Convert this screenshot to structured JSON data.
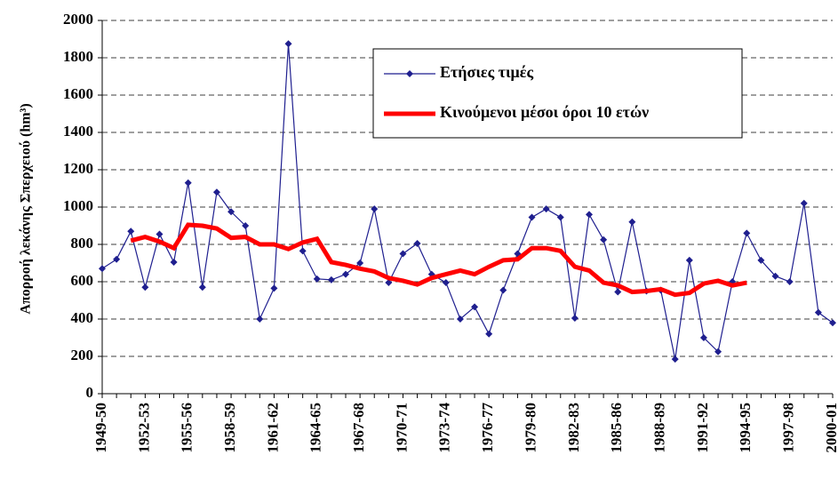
{
  "chart_data": {
    "type": "line",
    "y_label": "Απορροή λεκάνης Σπερχειού (hm³)",
    "categories": [
      "1949-50",
      null,
      null,
      "1952-53",
      null,
      null,
      "1955-56",
      null,
      null,
      "1958-59",
      null,
      null,
      "1961-62",
      null,
      null,
      "1964-65",
      null,
      null,
      "1967-68",
      null,
      null,
      "1970-71",
      null,
      null,
      "1973-74",
      null,
      null,
      "1976-77",
      null,
      null,
      "1979-80",
      null,
      null,
      "1982-83",
      null,
      null,
      "1985-86",
      null,
      null,
      "1988-89",
      null,
      null,
      "1991-92",
      null,
      null,
      "1994-95",
      null,
      null,
      "1997-98",
      null,
      null,
      "2000-01"
    ],
    "series": [
      {
        "name": "Ετήσιες τιμές",
        "color": "#1f1f8f",
        "marker": "diamond",
        "values": [
          670,
          720,
          870,
          570,
          855,
          705,
          1130,
          570,
          1080,
          975,
          900,
          400,
          565,
          1875,
          765,
          615,
          610,
          640,
          700,
          990,
          595,
          750,
          805,
          640,
          595,
          400,
          465,
          320,
          555,
          750,
          945,
          990,
          945,
          405,
          960,
          825,
          545,
          920,
          550,
          555,
          185,
          715,
          300,
          225,
          600,
          860,
          715,
          630,
          600,
          1020,
          435,
          380
        ]
      },
      {
        "name": "Κινούμενοι μέσοι όροι 10 ετών",
        "color": "#ff0000",
        "marker": null,
        "values": [
          null,
          null,
          820,
          840,
          815,
          780,
          905,
          900,
          885,
          835,
          840,
          800,
          800,
          775,
          810,
          830,
          705,
          690,
          670,
          655,
          620,
          605,
          585,
          620,
          640,
          660,
          640,
          680,
          715,
          720,
          780,
          780,
          765,
          680,
          660,
          595,
          580,
          545,
          550,
          560,
          530,
          540,
          590,
          605,
          580,
          595,
          null,
          null,
          null,
          null,
          null,
          null
        ]
      }
    ],
    "ylim": [
      0,
      2000
    ],
    "yticks": [
      0,
      200,
      400,
      600,
      800,
      1000,
      1200,
      1400,
      1600,
      1800,
      2000
    ],
    "grid": true,
    "legend_position": "upper right"
  }
}
